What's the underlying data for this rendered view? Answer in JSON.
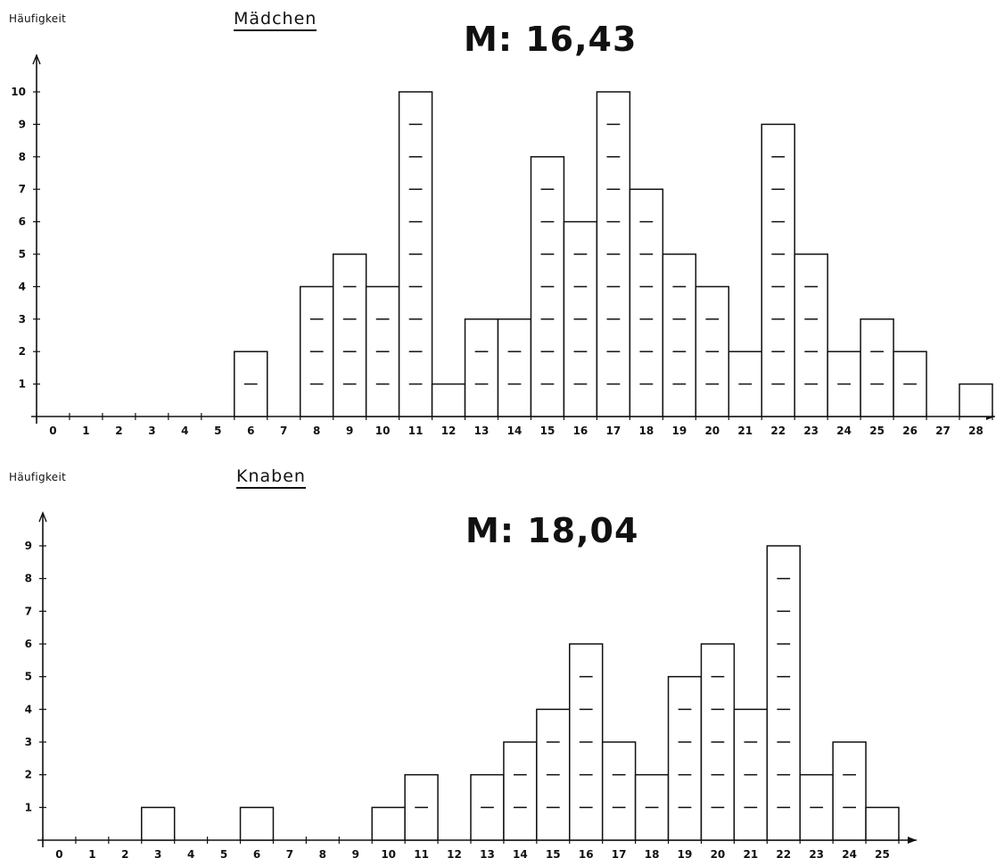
{
  "chart_data": [
    {
      "type": "bar",
      "title": "Mädchen",
      "ylabel": "Häufigkeit",
      "annotation": "M: 16,43",
      "categories": [
        "0",
        "1",
        "2",
        "3",
        "4",
        "5",
        "6",
        "7",
        "8",
        "9",
        "10",
        "11",
        "12",
        "13",
        "14",
        "15",
        "16",
        "17",
        "18",
        "19",
        "20",
        "21",
        "22",
        "23",
        "24",
        "25",
        "26",
        "27",
        "28"
      ],
      "values": [
        0,
        0,
        0,
        0,
        0,
        0,
        2,
        0,
        4,
        5,
        4,
        10,
        1,
        3,
        3,
        8,
        6,
        10,
        7,
        5,
        4,
        2,
        9,
        5,
        2,
        3,
        2,
        0,
        1
      ],
      "yticks": [
        "1",
        "2",
        "3",
        "4",
        "5",
        "6",
        "7",
        "8",
        "9",
        "10"
      ],
      "ylim": [
        0,
        10
      ],
      "grid": false
    },
    {
      "type": "bar",
      "title": "Knaben",
      "ylabel": "Häufigkeit",
      "annotation": "M: 18,04",
      "categories": [
        "0",
        "1",
        "2",
        "3",
        "4",
        "5",
        "6",
        "7",
        "8",
        "9",
        "10",
        "11",
        "12",
        "13",
        "14",
        "15",
        "16",
        "17",
        "18",
        "19",
        "20",
        "21",
        "22",
        "23",
        "24",
        "25"
      ],
      "values": [
        0,
        0,
        0,
        1,
        0,
        0,
        1,
        0,
        0,
        0,
        1,
        2,
        0,
        2,
        3,
        4,
        6,
        3,
        2,
        5,
        6,
        4,
        9,
        2,
        3,
        1
      ],
      "yticks": [
        "1",
        "2",
        "3",
        "4",
        "5",
        "6",
        "7",
        "8",
        "9"
      ],
      "ylim": [
        0,
        9
      ],
      "grid": false
    }
  ]
}
